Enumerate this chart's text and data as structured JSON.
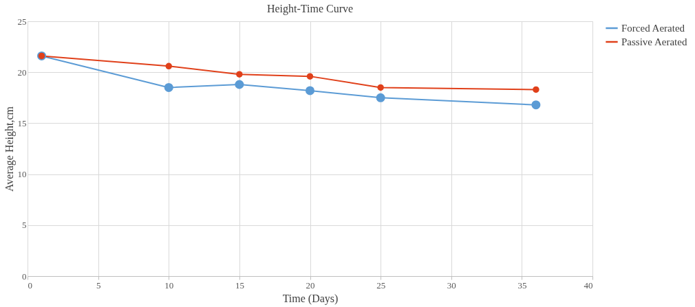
{
  "chart_data": {
    "type": "line",
    "title": "Height-Time Curve",
    "xlabel": "Time (Days)",
    "ylabel": "Average Height,cm",
    "x": [
      1,
      10,
      15,
      20,
      25,
      36
    ],
    "series": [
      {
        "name": "Forced Aerated",
        "color": "#5b9bd5",
        "values": [
          21.6,
          18.5,
          18.8,
          18.2,
          17.5,
          16.8
        ]
      },
      {
        "name": "Passive Aerated",
        "color": "#e0401a",
        "values": [
          21.6,
          20.6,
          19.8,
          19.6,
          18.5,
          18.3
        ]
      }
    ],
    "xlim": [
      0,
      40
    ],
    "xticks": [
      0,
      5,
      10,
      15,
      20,
      25,
      30,
      35,
      40
    ],
    "ylim": [
      0,
      25
    ],
    "yticks": [
      0,
      5,
      10,
      15,
      20,
      25
    ],
    "grid": true,
    "legend": "right",
    "marker": "circle",
    "line_style": "solid"
  }
}
